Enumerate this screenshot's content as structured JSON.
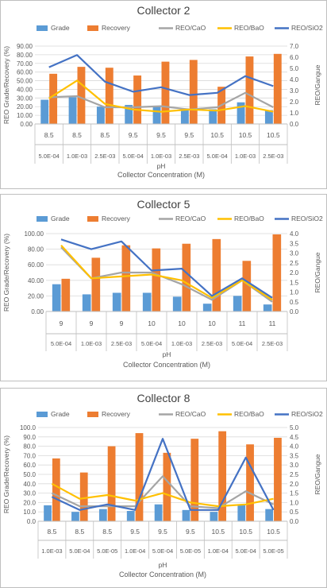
{
  "colors": {
    "grade": "#5b9bd5",
    "recovery": "#ed7d31",
    "cao": "#a5a5a5",
    "bao": "#ffc000",
    "sio2": "#4472c4",
    "axis_text": "#595959",
    "grid": "#d9d9d9",
    "title": "#404040"
  },
  "chart_data": [
    {
      "type": "bar",
      "title": "Collector 2",
      "legend": [
        "Grade",
        "Recovery",
        "REO/CaO",
        "REO/BaO",
        "REO/SiO2"
      ],
      "x_ph": [
        "8.5",
        "8.5",
        "8.5",
        "9.5",
        "9.5",
        "9.5",
        "10.5",
        "10.5",
        "10.5"
      ],
      "x_conc": [
        "5.0E-04",
        "1.0E-03",
        "2.5E-03",
        "5.0E-04",
        "1.0E-03",
        "2.5E-03",
        "5.0E-04",
        "1.0E-03",
        "2.5E-03"
      ],
      "xlabel_ph": "pH",
      "xlabel": "Collector Concentration (M)",
      "ylabel": "REO Grade/Recovery (%)",
      "y2label": "REO/Gangue",
      "ylim": [
        0,
        90
      ],
      "y_ticks": [
        "0.00",
        "10.00",
        "20.00",
        "30.00",
        "40.00",
        "50.00",
        "60.00",
        "70.00",
        "80.00",
        "90.00"
      ],
      "y2lim": [
        0,
        7
      ],
      "y2_ticks": [
        "0.0",
        "1.0",
        "2.0",
        "3.0",
        "4.0",
        "5.0",
        "6.0",
        "7.0"
      ],
      "grade": [
        28,
        31,
        20,
        22,
        20,
        18,
        17,
        25,
        16
      ],
      "recovery": [
        58,
        66,
        65,
        56,
        72,
        74,
        43,
        78,
        81
      ],
      "cao": [
        2.4,
        2.5,
        1.5,
        1.5,
        1.6,
        1.3,
        1.5,
        2.8,
        1.5
      ],
      "bao": [
        2.3,
        3.9,
        1.8,
        1.3,
        1.1,
        1.3,
        1.2,
        1.6,
        1.1
      ],
      "sio2": [
        5.1,
        6.2,
        3.8,
        2.9,
        3.3,
        2.6,
        2.8,
        4.3,
        3.4
      ]
    },
    {
      "type": "bar",
      "title": "Collector 5",
      "legend": [
        "Grade",
        "Recovery",
        "REO/CaO",
        "REO/BaO",
        "REO/SiO2"
      ],
      "x_ph": [
        "9",
        "9",
        "9",
        "10",
        "10",
        "10",
        "11",
        "11"
      ],
      "x_conc": [
        "5.0E-04",
        "1.0E-03",
        "2.5E-03",
        "5.0E-04",
        "1.0E-03",
        "2.5E-03",
        "5.0E-04",
        "2.5E-03"
      ],
      "xlabel_ph": "pH",
      "xlabel": "Collector Concentration (M)",
      "ylabel": "REO Grade/Recovery (%)",
      "y2label": "REO/Gangue",
      "ylim": [
        0,
        100
      ],
      "y_ticks": [
        "0.00",
        "20.00",
        "40.00",
        "60.00",
        "80.00",
        "100.00"
      ],
      "y2lim": [
        0,
        4
      ],
      "y2_ticks": [
        "0.0",
        "0.5",
        "1.0",
        "1.5",
        "2.0",
        "2.5",
        "3.0",
        "3.5",
        "4.0"
      ],
      "grade": [
        35,
        22,
        24,
        24,
        19,
        10,
        20,
        9
      ],
      "recovery": [
        42,
        69,
        85,
        81,
        87,
        93,
        65,
        99
      ],
      "cao": [
        3.3,
        1.7,
        2.0,
        2.0,
        1.4,
        0.6,
        1.6,
        0.5
      ],
      "bao": [
        3.4,
        1.7,
        1.8,
        1.9,
        1.6,
        0.7,
        1.6,
        0.6
      ],
      "sio2": [
        3.7,
        3.2,
        3.6,
        2.1,
        2.2,
        0.8,
        1.7,
        0.7
      ]
    },
    {
      "type": "bar",
      "title": "Collector 8",
      "legend": [
        "Grade",
        "Recovery",
        "REO/CaO",
        "REO/BaO",
        "REO/SiO2"
      ],
      "x_ph": [
        "8.5",
        "8.5",
        "8.5",
        "9.5",
        "9.5",
        "9.5",
        "10.5",
        "10.5",
        "10.5"
      ],
      "x_conc": [
        "1.0E-03",
        "5.0E-04",
        "5.0E-05",
        "1.0E-04",
        "5.0E-04",
        "5.0E-05",
        "1.0E-04",
        "5.0E-04",
        "5.0E-05"
      ],
      "xlabel_ph": "pH",
      "xlabel": "Collector Concentration (M)",
      "ylabel": "REO Grade/Recovery (%)",
      "y2label": "REO/Gangue",
      "ylim": [
        0,
        100
      ],
      "y_ticks": [
        "0.0",
        "10.0",
        "20.0",
        "30.0",
        "40.0",
        "50.0",
        "60.0",
        "70.0",
        "80.0",
        "90.0",
        "100.0"
      ],
      "y2lim": [
        0,
        5
      ],
      "y2_ticks": [
        "0.0",
        "0.5",
        "1.0",
        "1.5",
        "2.0",
        "2.5",
        "3.0",
        "3.5",
        "4.0",
        "4.5",
        "5.0"
      ],
      "grade": [
        17,
        10,
        13,
        11,
        18,
        12,
        10,
        18,
        13
      ],
      "recovery": [
        67,
        52,
        80,
        94,
        73,
        88,
        96,
        82,
        89
      ],
      "cao": [
        1.5,
        0.8,
        0.8,
        0.8,
        2.4,
        0.8,
        0.7,
        1.6,
        0.9
      ],
      "bao": [
        2.0,
        1.2,
        1.4,
        1.1,
        1.5,
        1.0,
        0.8,
        0.9,
        1.2
      ],
      "sio2": [
        1.3,
        0.6,
        0.9,
        0.6,
        4.4,
        0.6,
        0.6,
        3.4,
        0.6
      ]
    }
  ]
}
